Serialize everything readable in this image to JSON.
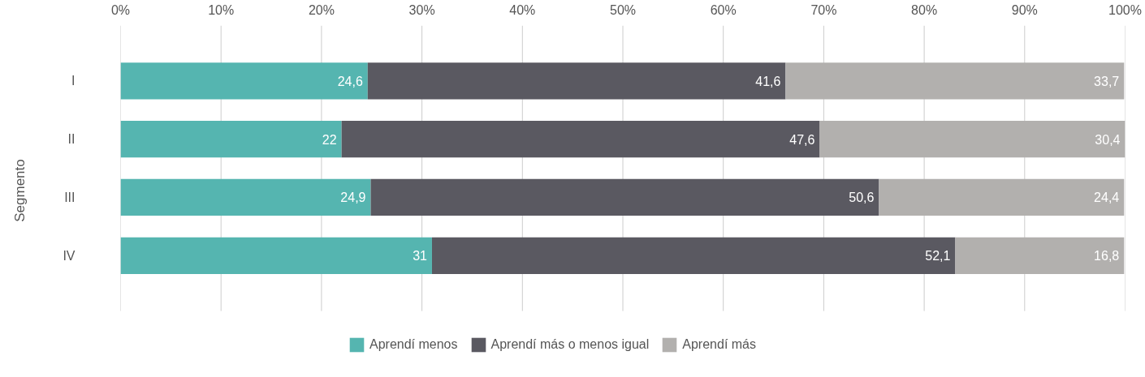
{
  "chart_data": {
    "type": "bar",
    "orientation": "horizontal",
    "stacked": true,
    "ylabel": "Segmento",
    "categories": [
      "I",
      "II",
      "III",
      "IV"
    ],
    "series": [
      {
        "name": "Aprendí menos",
        "color": "#55b5b0",
        "values": [
          24.6,
          22,
          24.9,
          31
        ],
        "value_labels": [
          "24,6",
          "22",
          "24,9",
          "31"
        ]
      },
      {
        "name": "Aprendí más o menos igual",
        "color": "#5a5961",
        "values": [
          41.6,
          47.6,
          50.6,
          52.1
        ],
        "value_labels": [
          "41,6",
          "47,6",
          "50,6",
          "52,1"
        ]
      },
      {
        "name": "Aprendí más",
        "color": "#b2b0ae",
        "values": [
          33.7,
          30.4,
          24.4,
          16.8
        ],
        "value_labels": [
          "33,7",
          "30,4",
          "24,4",
          "16,8"
        ]
      }
    ],
    "xlim": [
      0,
      100
    ],
    "xticks": [
      {
        "value": 0,
        "label": "0%"
      },
      {
        "value": 10,
        "label": "10%"
      },
      {
        "value": 20,
        "label": "20%"
      },
      {
        "value": 30,
        "label": "30%"
      },
      {
        "value": 40,
        "label": "40%"
      },
      {
        "value": 50,
        "label": "50%"
      },
      {
        "value": 60,
        "label": "60%"
      },
      {
        "value": 70,
        "label": "70%"
      },
      {
        "value": 80,
        "label": "80%"
      },
      {
        "value": 90,
        "label": "90%"
      },
      {
        "value": 100,
        "label": "100%"
      }
    ],
    "grid": "x",
    "legend": "bottom",
    "data_labels": true
  }
}
